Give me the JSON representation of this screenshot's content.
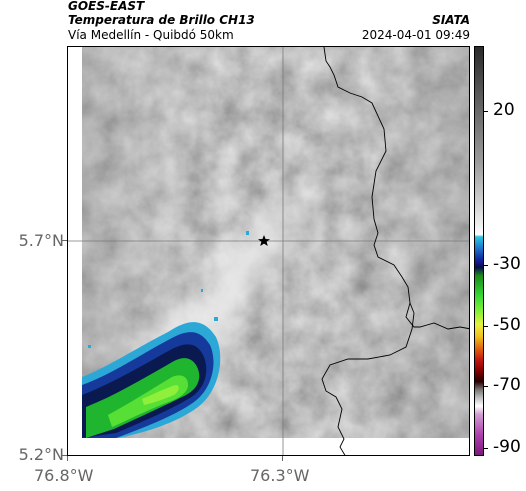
{
  "header": {
    "satellite": "GOES-EAST",
    "product": "Temperatura de Brillo CH13",
    "region": "Vía Medellín - Quibdó 50km",
    "source": "SIATA",
    "datetime": "2024-04-01 09:49"
  },
  "axes": {
    "lat_labels": [
      {
        "value": 5.7,
        "label": "5.7°N"
      },
      {
        "value": 5.2,
        "label": "5.2°N"
      }
    ],
    "lon_labels": [
      {
        "value": -76.8,
        "label": "76.8°W"
      },
      {
        "value": -76.3,
        "label": "76.3°W"
      }
    ]
  },
  "colorbar": {
    "labels": [
      "20",
      "-30",
      "-50",
      "-70",
      "-90"
    ]
  },
  "marker": {
    "icon": "star-icon"
  }
}
